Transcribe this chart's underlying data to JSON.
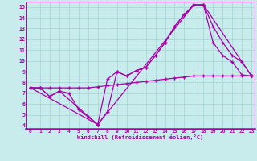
{
  "background_color": "#c8ecec",
  "grid_color": "#a8d8d8",
  "line_color": "#aa00aa",
  "xlim": [
    -0.5,
    23.3
  ],
  "ylim": [
    3.7,
    15.5
  ],
  "yticks": [
    4,
    5,
    6,
    7,
    8,
    9,
    10,
    11,
    12,
    13,
    14,
    15
  ],
  "xticks": [
    0,
    1,
    2,
    3,
    4,
    5,
    6,
    7,
    8,
    9,
    10,
    11,
    12,
    13,
    14,
    15,
    16,
    17,
    18,
    19,
    20,
    21,
    22,
    23
  ],
  "xlabel": "Windchill (Refroidissement éolien,°C)",
  "line1_x": [
    0,
    1,
    2,
    3,
    4,
    5,
    6,
    7,
    8,
    9,
    10,
    11,
    12,
    13,
    14,
    15,
    16,
    17,
    18,
    19,
    20,
    21,
    22,
    23
  ],
  "line1_y": [
    7.5,
    7.5,
    6.7,
    7.2,
    7.0,
    5.5,
    4.8,
    4.1,
    5.3,
    9.0,
    8.6,
    9.1,
    9.4,
    10.5,
    11.7,
    13.2,
    14.3,
    15.2,
    15.2,
    11.7,
    10.5,
    9.9,
    8.7,
    8.6
  ],
  "line2_x": [
    0,
    1,
    2,
    3,
    7,
    8,
    9,
    10,
    11,
    12,
    13,
    14,
    15,
    16,
    17,
    18,
    19,
    20,
    21,
    22,
    23
  ],
  "line2_y": [
    7.5,
    7.5,
    6.7,
    7.2,
    4.1,
    8.3,
    9.0,
    8.6,
    9.1,
    9.4,
    10.5,
    11.7,
    13.2,
    14.3,
    15.2,
    15.2,
    13.2,
    11.7,
    10.5,
    9.9,
    8.6
  ],
  "line3_x": [
    0,
    7,
    17,
    18,
    23
  ],
  "line3_y": [
    7.5,
    4.1,
    15.2,
    15.2,
    8.6
  ],
  "line4_x": [
    0,
    1,
    2,
    3,
    4,
    5,
    6,
    7,
    8,
    9,
    10,
    11,
    12,
    13,
    14,
    15,
    16,
    17,
    18,
    19,
    20,
    21,
    22,
    23
  ],
  "line4_y": [
    7.5,
    7.5,
    7.5,
    7.5,
    7.5,
    7.5,
    7.5,
    7.6,
    7.7,
    7.8,
    7.9,
    8.0,
    8.1,
    8.2,
    8.3,
    8.4,
    8.5,
    8.6,
    8.6,
    8.6,
    8.6,
    8.6,
    8.6,
    8.6
  ]
}
